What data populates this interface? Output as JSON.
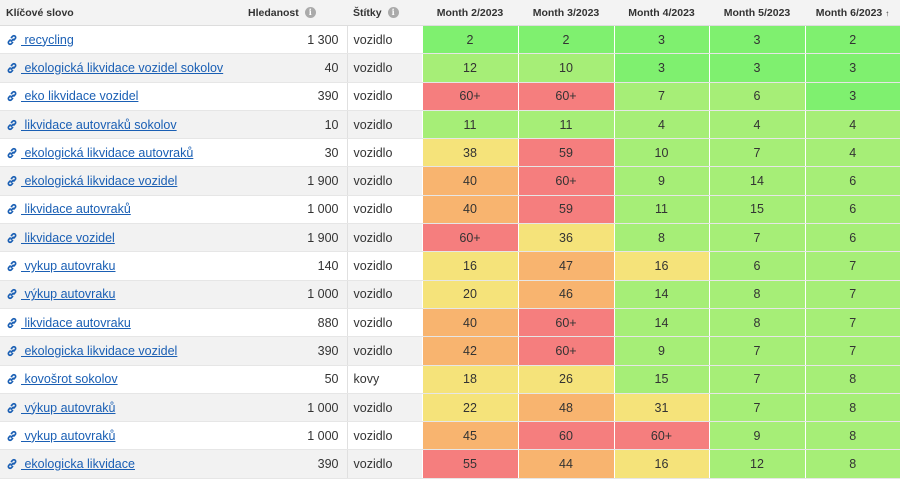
{
  "headers": {
    "keyword": "Klíčové slovo",
    "volume": "Hledanost",
    "tags": "Štítky",
    "months": [
      "Month 2/2023",
      "Month 3/2023",
      "Month 4/2023",
      "Month 5/2023",
      "Month 6/2023"
    ],
    "sort_icon": "↑"
  },
  "rows": [
    {
      "keyword": " recycling",
      "volume": "1 300",
      "tag": "vozidlo",
      "pos": [
        "2",
        "2",
        "3",
        "3",
        "2"
      ]
    },
    {
      "keyword": " ekologická likvidace vozidel sokolov",
      "volume": "40",
      "tag": "vozidlo",
      "pos": [
        "12",
        "10",
        "3",
        "3",
        "3"
      ]
    },
    {
      "keyword": " eko likvidace vozidel",
      "volume": "390",
      "tag": "vozidlo",
      "pos": [
        "60+",
        "60+",
        "7",
        "6",
        "3"
      ]
    },
    {
      "keyword": " likvidace autovraků sokolov",
      "volume": "10",
      "tag": "vozidlo",
      "pos": [
        "11",
        "11",
        "4",
        "4",
        "4"
      ]
    },
    {
      "keyword": " ekologická likvidace autovraků",
      "volume": "30",
      "tag": "vozidlo",
      "pos": [
        "38",
        "59",
        "10",
        "7",
        "4"
      ]
    },
    {
      "keyword": " ekologická likvidace vozidel",
      "volume": "1 900",
      "tag": "vozidlo",
      "pos": [
        "40",
        "60+",
        "9",
        "14",
        "6"
      ]
    },
    {
      "keyword": " likvidace autovraků",
      "volume": "1 000",
      "tag": "vozidlo",
      "pos": [
        "40",
        "59",
        "11",
        "15",
        "6"
      ]
    },
    {
      "keyword": " likvidace vozidel",
      "volume": "1 900",
      "tag": "vozidlo",
      "pos": [
        "60+",
        "36",
        "8",
        "7",
        "6"
      ]
    },
    {
      "keyword": " vykup autovraku",
      "volume": "140",
      "tag": "vozidlo",
      "pos": [
        "16",
        "47",
        "16",
        "6",
        "7"
      ]
    },
    {
      "keyword": " výkup autovraku",
      "volume": "1 000",
      "tag": "vozidlo",
      "pos": [
        "20",
        "46",
        "14",
        "8",
        "7"
      ]
    },
    {
      "keyword": " likvidace autovraku",
      "volume": "880",
      "tag": "vozidlo",
      "pos": [
        "40",
        "60+",
        "14",
        "8",
        "7"
      ]
    },
    {
      "keyword": " ekologicka likvidace vozidel",
      "volume": "390",
      "tag": "vozidlo",
      "pos": [
        "42",
        "60+",
        "9",
        "7",
        "7"
      ]
    },
    {
      "keyword": " kovošrot sokolov",
      "volume": "50",
      "tag": "kovy",
      "pos": [
        "18",
        "26",
        "15",
        "7",
        "8"
      ]
    },
    {
      "keyword": " výkup autovraků",
      "volume": "1 000",
      "tag": "vozidlo",
      "pos": [
        "22",
        "48",
        "31",
        "7",
        "8"
      ]
    },
    {
      "keyword": " vykup autovraků",
      "volume": "1 000",
      "tag": "vozidlo",
      "pos": [
        "45",
        "60",
        "60+",
        "9",
        "8"
      ]
    },
    {
      "keyword": " ekologicka likvidace",
      "volume": "390",
      "tag": "vozidlo",
      "pos": [
        "55",
        "44",
        "16",
        "12",
        "8"
      ]
    }
  ],
  "colors": {
    "best": "#7ff06f",
    "good": "#a6ee77",
    "mid": "#f5e37a",
    "bad": "#f8b46f",
    "worst": "#f57e7e",
    "link": "#1a5fb4"
  },
  "icons": {
    "keyword_link": "link-icon",
    "info": "info-icon",
    "sort": "sort-ascending-icon"
  }
}
